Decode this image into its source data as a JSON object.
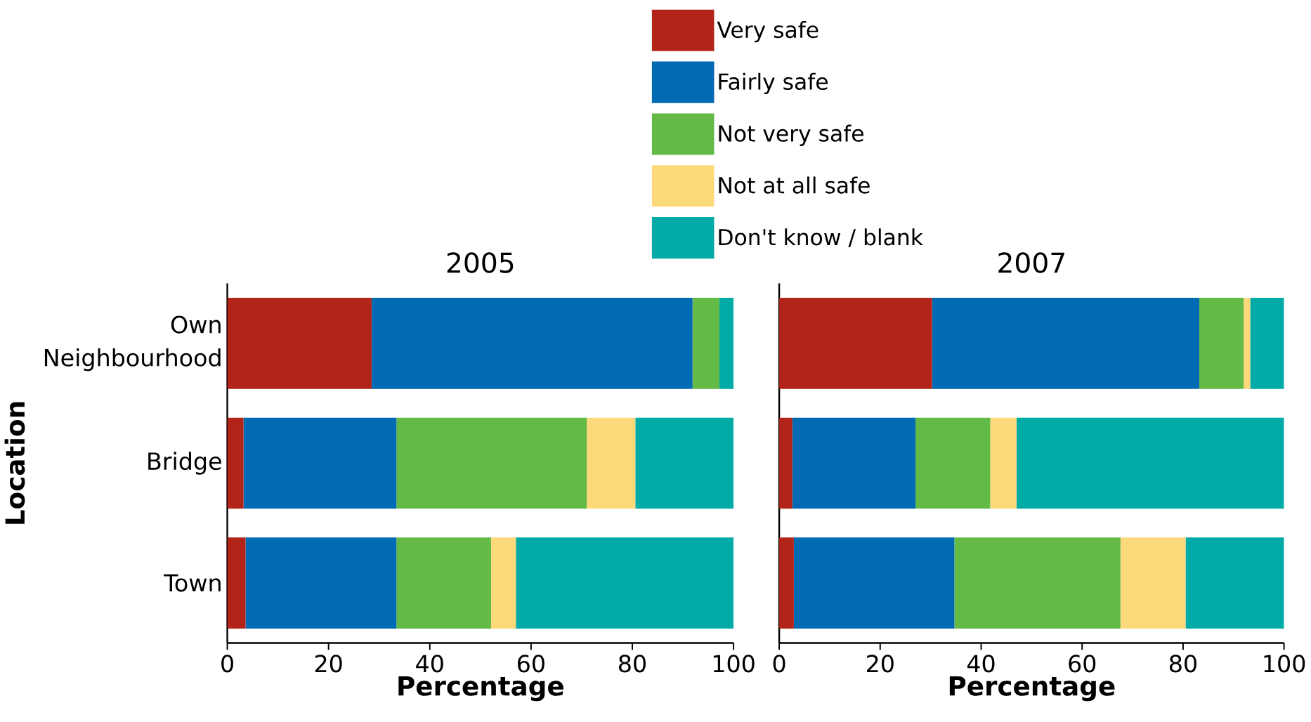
{
  "chart_data": [
    {
      "type": "bar",
      "orientation": "horizontal",
      "stacked": true,
      "title": "2005",
      "xlabel": "**Percentage**",
      "ylabel": "**Location**",
      "legend": "top right",
      "categories": [
        "Own Neighbourhood",
        "Bridge",
        "Town"
      ],
      "xlim": [
        0,
        100
      ],
      "xticks": [
        0,
        20,
        40,
        60,
        80,
        100
      ],
      "series": [
        {
          "name": "Very safe",
          "color": "#b22418",
          "values": [
            28.5,
            3.2,
            3.6
          ]
        },
        {
          "name": "Fairly safe",
          "color": "#006ab3",
          "values": [
            63.4,
            30.2,
            29.8
          ]
        },
        {
          "name": "Not very safe",
          "color": "#63ba47",
          "values": [
            5.3,
            37.6,
            18.7
          ]
        },
        {
          "name": "Not at all safe",
          "color": "#fcd97a",
          "values": [
            0,
            9.6,
            4.9
          ]
        },
        {
          "name": "Don't know / blank",
          "color": "#00aaa6",
          "values": [
            2.8,
            19.4,
            43.0
          ]
        }
      ]
    },
    {
      "type": "bar",
      "orientation": "horizontal",
      "stacked": true,
      "title": "2007",
      "xlabel": "**Percentage**",
      "tick_labels": "x",
      "xlim": [
        0,
        100
      ],
      "xticks": [
        0,
        20,
        40,
        60,
        80,
        100
      ],
      "series": [
        {
          "color": "#b22418",
          "values": [
            30.3,
            2.6,
            2.9
          ]
        },
        {
          "color": "#006ab3",
          "values": [
            52.9,
            24.4,
            31.8
          ]
        },
        {
          "color": "#63ba47",
          "values": [
            8.8,
            14.8,
            32.9
          ]
        },
        {
          "color": "#fcd97a",
          "values": [
            1.3,
            5.2,
            12.9
          ]
        },
        {
          "color": "#00aaa6",
          "values": [
            6.7,
            53.0,
            19.5
          ]
        }
      ]
    }
  ]
}
